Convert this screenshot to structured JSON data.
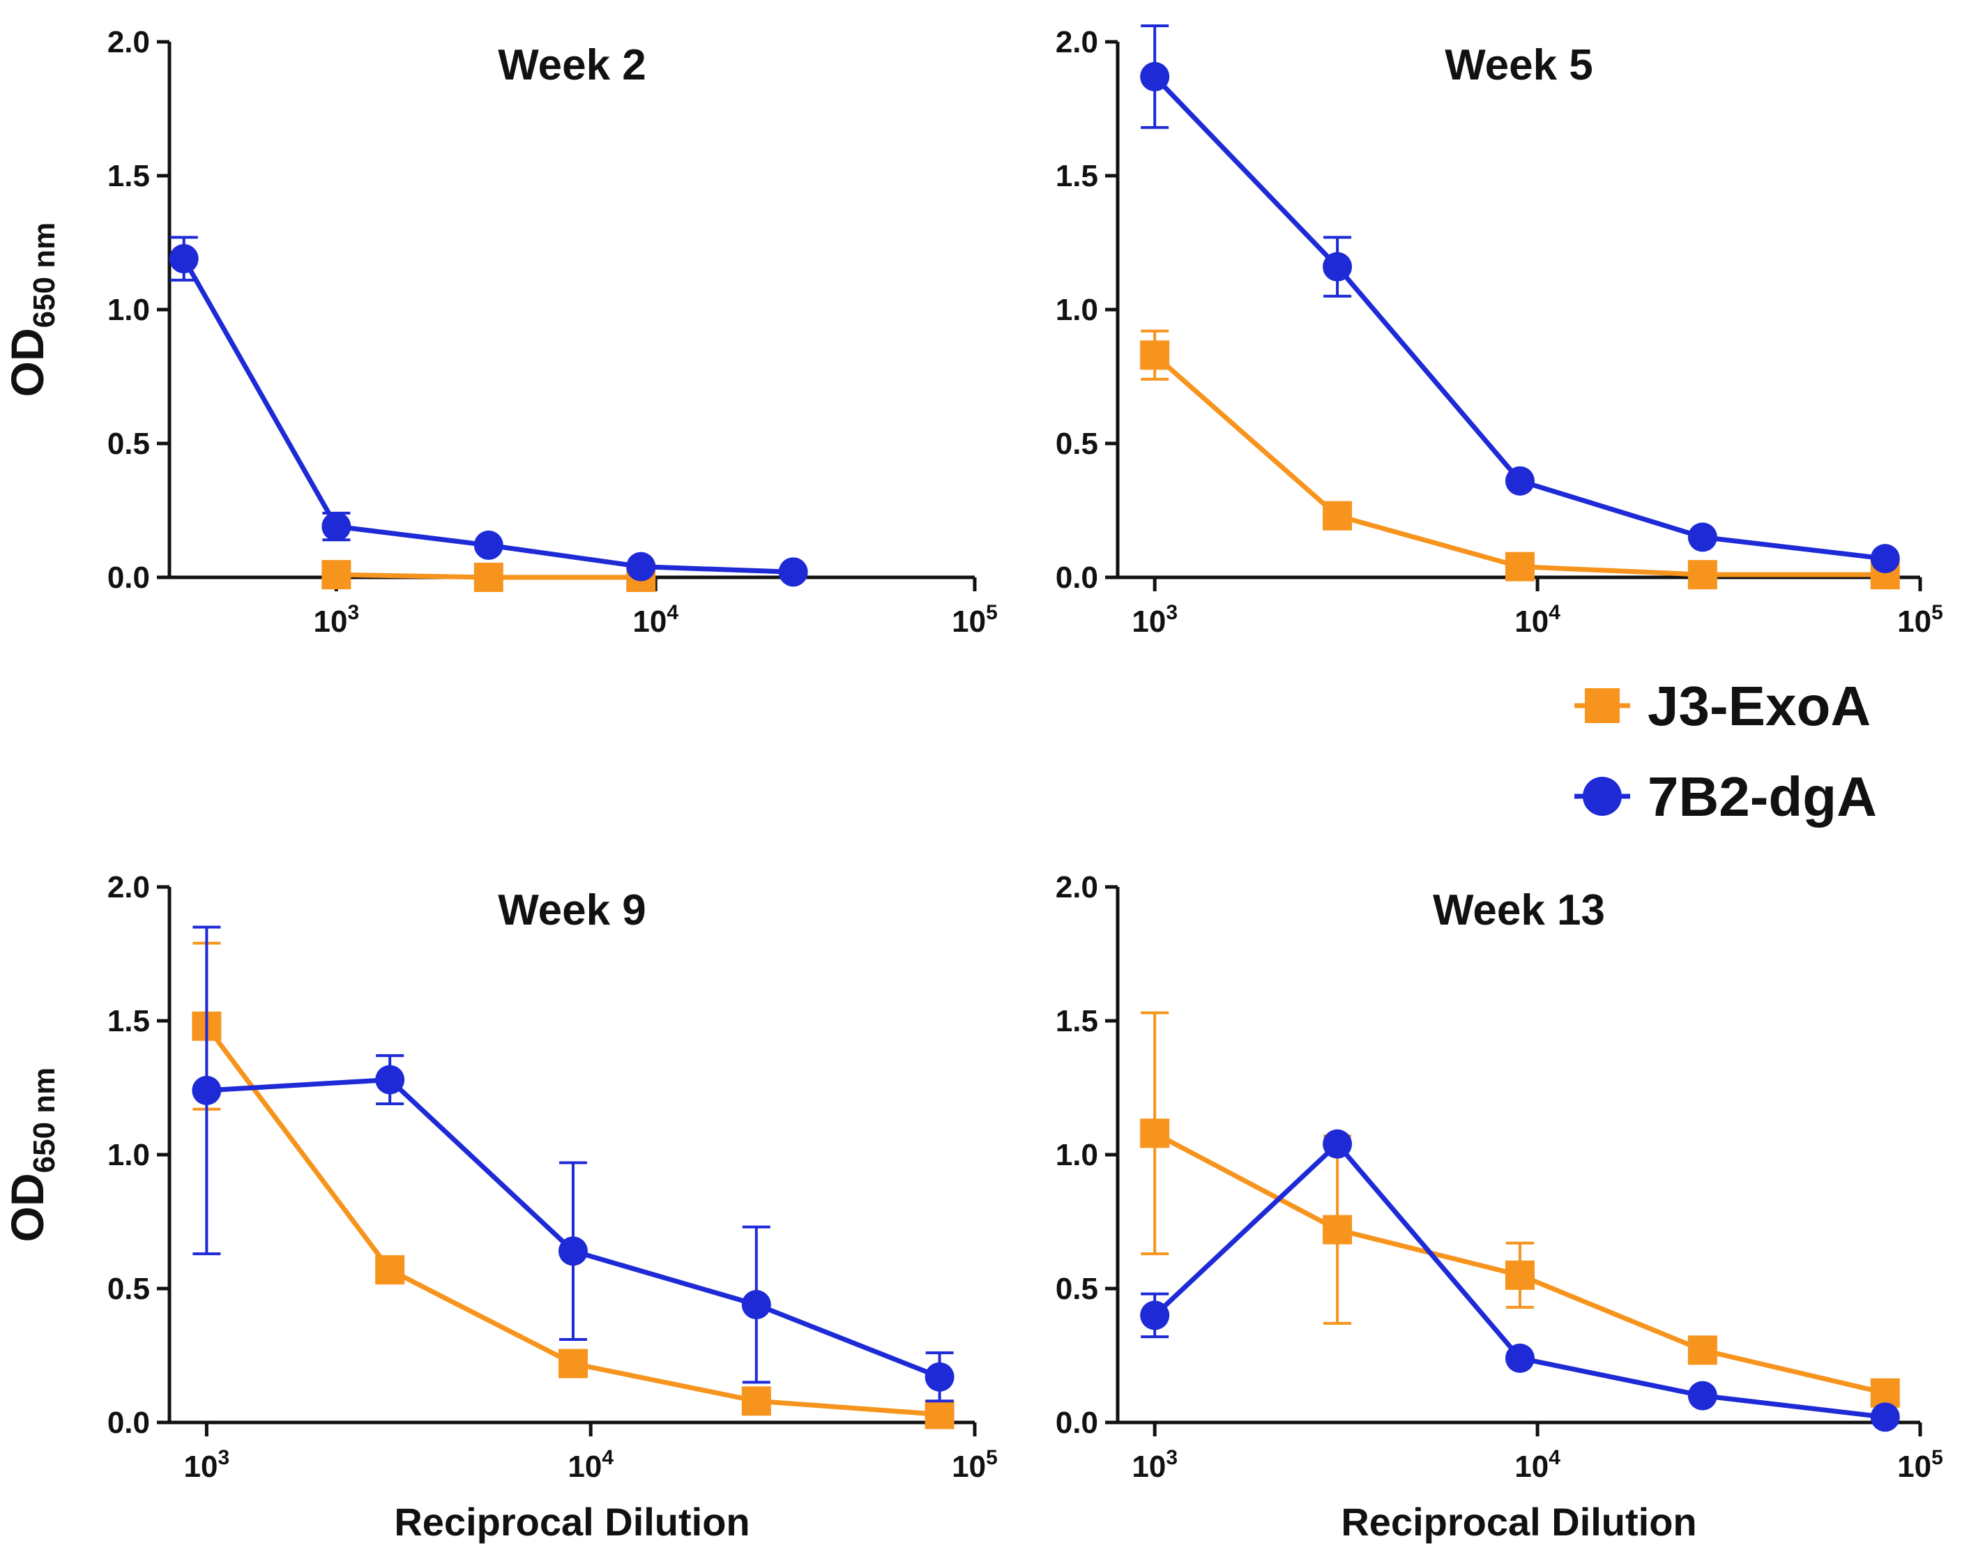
{
  "colors": {
    "J3-ExoA": "#f7941d",
    "7B2-dgA": "#1d2ad6",
    "axis": "#111111"
  },
  "legend": {
    "position": "right, between top and bottom rows",
    "items": [
      {
        "series": "J3-ExoA",
        "marker": "square",
        "label": "J3-ExoA"
      },
      {
        "series": "7B2-dgA",
        "marker": "circle",
        "label": "7B2-dgA"
      }
    ]
  },
  "chart_data": [
    {
      "type": "line",
      "title": "Week 2",
      "ylabel": "OD",
      "ylabel_sub": "650 nm",
      "xlabel": "",
      "xscale": "log",
      "xlim": [
        300,
        100000
      ],
      "ylim": [
        0,
        2.0
      ],
      "yticks": [
        "0.0",
        "0.5",
        "1.0",
        "1.5",
        "2.0"
      ],
      "xticks": [
        {
          "value": 1000,
          "base": "10",
          "exp": "3"
        },
        {
          "value": 10000,
          "base": "10",
          "exp": "4"
        },
        {
          "value": 100000,
          "base": "10",
          "exp": "5"
        }
      ],
      "series": [
        {
          "name": "J3-ExoA",
          "marker": "square",
          "points": [
            {
              "x": 1000,
              "y": 0.01
            },
            {
              "x": 3000,
              "y": 0.0
            },
            {
              "x": 9000,
              "y": 0.0
            }
          ]
        },
        {
          "name": "7B2-dgA",
          "marker": "circle",
          "points": [
            {
              "x": 333,
              "y": 1.19,
              "err": 0.08
            },
            {
              "x": 1000,
              "y": 0.19,
              "err": 0.05
            },
            {
              "x": 3000,
              "y": 0.12
            },
            {
              "x": 9000,
              "y": 0.04
            },
            {
              "x": 27000,
              "y": 0.02
            }
          ]
        }
      ]
    },
    {
      "type": "line",
      "title": "Week 5",
      "ylabel": "",
      "ylabel_sub": "",
      "xlabel": "",
      "xscale": "log",
      "xlim": [
        800,
        100000
      ],
      "ylim": [
        0,
        2.0
      ],
      "yticks": [
        "0.0",
        "0.5",
        "1.0",
        "1.5",
        "2.0"
      ],
      "xticks": [
        {
          "value": 1000,
          "base": "10",
          "exp": "3"
        },
        {
          "value": 10000,
          "base": "10",
          "exp": "4"
        },
        {
          "value": 100000,
          "base": "10",
          "exp": "5"
        }
      ],
      "series": [
        {
          "name": "J3-ExoA",
          "marker": "square",
          "points": [
            {
              "x": 1000,
              "y": 0.83,
              "err": 0.09
            },
            {
              "x": 3000,
              "y": 0.23
            },
            {
              "x": 9000,
              "y": 0.04
            },
            {
              "x": 27000,
              "y": 0.01
            },
            {
              "x": 81000,
              "y": 0.01
            }
          ]
        },
        {
          "name": "7B2-dgA",
          "marker": "circle",
          "points": [
            {
              "x": 1000,
              "y": 1.87,
              "err": 0.19
            },
            {
              "x": 3000,
              "y": 1.16,
              "err": 0.11
            },
            {
              "x": 9000,
              "y": 0.36
            },
            {
              "x": 27000,
              "y": 0.15
            },
            {
              "x": 81000,
              "y": 0.07
            }
          ]
        }
      ]
    },
    {
      "type": "line",
      "title": "Week 9",
      "ylabel": "OD",
      "ylabel_sub": "650 nm",
      "xlabel": "Reciprocal Dilution",
      "xscale": "log",
      "xlim": [
        800,
        100000
      ],
      "ylim": [
        0,
        2.0
      ],
      "yticks": [
        "0.0",
        "0.5",
        "1.0",
        "1.5",
        "2.0"
      ],
      "xticks": [
        {
          "value": 1000,
          "base": "10",
          "exp": "3"
        },
        {
          "value": 10000,
          "base": "10",
          "exp": "4"
        },
        {
          "value": 100000,
          "base": "10",
          "exp": "5"
        }
      ],
      "series": [
        {
          "name": "J3-ExoA",
          "marker": "square",
          "points": [
            {
              "x": 1000,
              "y": 1.48,
              "err": 0.31
            },
            {
              "x": 3000,
              "y": 0.57
            },
            {
              "x": 9000,
              "y": 0.22
            },
            {
              "x": 27000,
              "y": 0.08
            },
            {
              "x": 81000,
              "y": 0.03
            }
          ]
        },
        {
          "name": "7B2-dgA",
          "marker": "circle",
          "points": [
            {
              "x": 1000,
              "y": 1.24,
              "err": 0.61
            },
            {
              "x": 3000,
              "y": 1.28,
              "err": 0.09
            },
            {
              "x": 9000,
              "y": 0.64,
              "err": 0.33
            },
            {
              "x": 27000,
              "y": 0.44,
              "err": 0.29
            },
            {
              "x": 81000,
              "y": 0.17,
              "err": 0.09
            }
          ]
        }
      ]
    },
    {
      "type": "line",
      "title": "Week 13",
      "ylabel": "",
      "ylabel_sub": "",
      "xlabel": "Reciprocal Dilution",
      "xscale": "log",
      "xlim": [
        800,
        100000
      ],
      "ylim": [
        0,
        2.0
      ],
      "yticks": [
        "0.0",
        "0.5",
        "1.0",
        "1.5",
        "2.0"
      ],
      "xticks": [
        {
          "value": 1000,
          "base": "10",
          "exp": "3"
        },
        {
          "value": 10000,
          "base": "10",
          "exp": "4"
        },
        {
          "value": 100000,
          "base": "10",
          "exp": "5"
        }
      ],
      "series": [
        {
          "name": "J3-ExoA",
          "marker": "square",
          "points": [
            {
              "x": 1000,
              "y": 1.08,
              "err": 0.45
            },
            {
              "x": 3000,
              "y": 0.72,
              "err": 0.35
            },
            {
              "x": 9000,
              "y": 0.55,
              "err": 0.12
            },
            {
              "x": 27000,
              "y": 0.27
            },
            {
              "x": 81000,
              "y": 0.11
            }
          ]
        },
        {
          "name": "7B2-dgA",
          "marker": "circle",
          "points": [
            {
              "x": 1000,
              "y": 0.4,
              "err": 0.08
            },
            {
              "x": 3000,
              "y": 1.04
            },
            {
              "x": 9000,
              "y": 0.24
            },
            {
              "x": 27000,
              "y": 0.1
            },
            {
              "x": 81000,
              "y": 0.02
            }
          ]
        }
      ]
    }
  ]
}
